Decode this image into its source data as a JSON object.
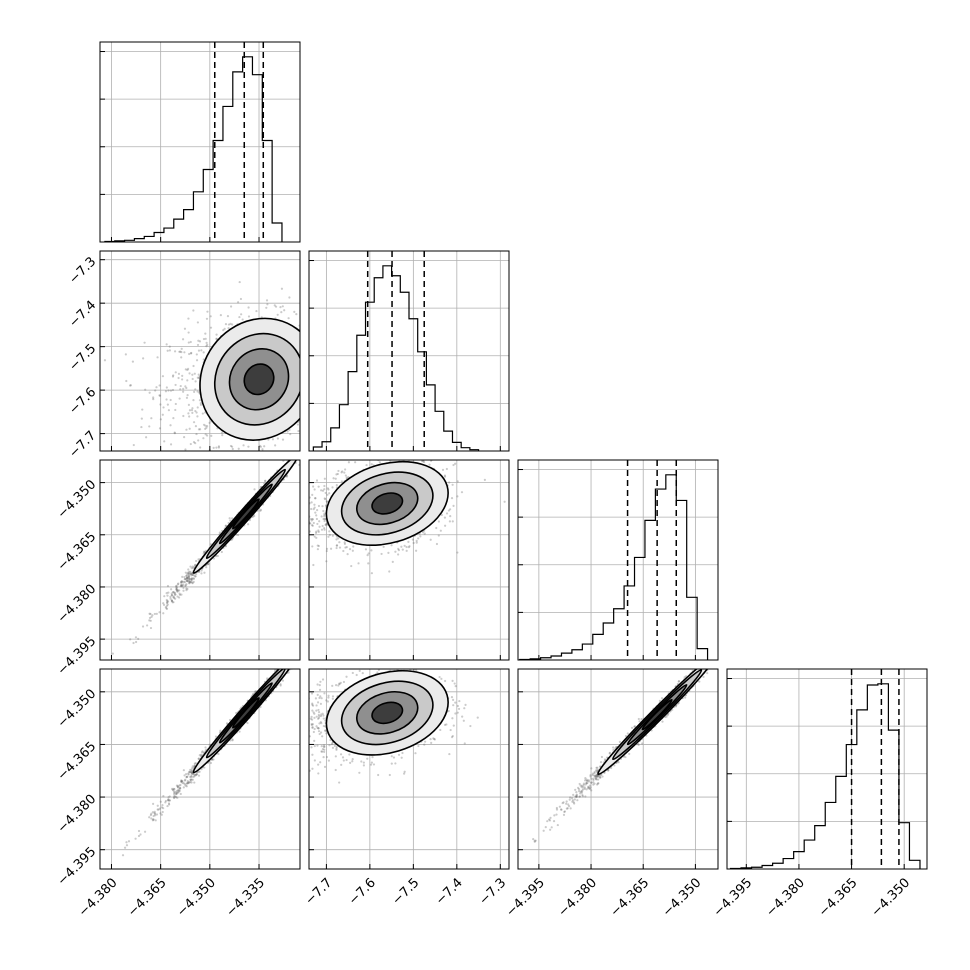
{
  "figure": {
    "title": "",
    "type": "corner"
  },
  "chart_data": {
    "type": "corner",
    "dimension_count": 4,
    "grid": true,
    "quantiles": [
      0.16,
      0.5,
      0.84
    ],
    "parameters": [
      {
        "index": 0,
        "range": [
          -4.3835,
          -4.3225
        ],
        "ticks": [
          -4.38,
          -4.365,
          -4.35,
          -4.335
        ],
        "tick_labels": [
          "−4.380",
          "−4.365",
          "−4.350",
          "−4.335"
        ],
        "quantile_values": [
          -4.3485,
          -4.3395,
          -4.3337
        ],
        "hist_edges": [
          -4.382,
          -4.379,
          -4.376,
          -4.373,
          -4.37,
          -4.367,
          -4.364,
          -4.361,
          -4.358,
          -4.355,
          -4.352,
          -4.349,
          -4.346,
          -4.343,
          -4.34,
          -4.337,
          -4.334,
          -4.331,
          -4.328,
          -4.325
        ],
        "hist_counts": [
          1,
          2,
          3,
          6,
          10,
          17,
          25,
          41,
          58,
          90,
          130,
          182,
          243,
          305,
          332,
          300,
          182,
          34
        ]
      },
      {
        "index": 1,
        "range": [
          -7.74,
          -7.28
        ],
        "ticks": [
          -7.7,
          -7.6,
          -7.5,
          -7.4,
          -7.3
        ],
        "tick_labels": [
          "−7.7",
          "−7.6",
          "−7.5",
          "−7.4",
          "−7.3"
        ],
        "quantile_values": [
          -7.605,
          -7.549,
          -7.475
        ],
        "hist_edges": [
          -7.73,
          -7.71,
          -7.69,
          -7.67,
          -7.65,
          -7.63,
          -7.61,
          -7.59,
          -7.57,
          -7.55,
          -7.53,
          -7.51,
          -7.49,
          -7.47,
          -7.45,
          -7.43,
          -7.41,
          -7.39,
          -7.37,
          -7.35
        ],
        "hist_counts": [
          6,
          14,
          35,
          70,
          120,
          175,
          225,
          262,
          280,
          265,
          240,
          200,
          150,
          100,
          60,
          30,
          13,
          5,
          2
        ]
      },
      {
        "index": 2,
        "range": [
          -4.401,
          -4.3435
        ],
        "ticks": [
          -4.35,
          -4.365,
          -4.38,
          -4.395
        ],
        "tick_labels": [
          "−4.350",
          "−4.365",
          "−4.380",
          "−4.395"
        ],
        "quantile_values": [
          -4.3695,
          -4.361,
          -4.3555
        ],
        "hist_edges": [
          -4.4005,
          -4.3975,
          -4.3945,
          -4.3915,
          -4.3885,
          -4.3855,
          -4.3825,
          -4.3795,
          -4.3765,
          -4.3735,
          -4.3705,
          -4.3675,
          -4.3645,
          -4.3615,
          -4.3585,
          -4.3555,
          -4.3525,
          -4.3495,
          -4.3465
        ],
        "hist_counts": [
          1,
          2,
          4,
          7,
          12,
          18,
          28,
          45,
          65,
          90,
          130,
          180,
          245,
          300,
          325,
          280,
          110,
          20
        ]
      },
      {
        "index": 3,
        "range": [
          -4.4005,
          -4.3435
        ],
        "ticks": [
          -4.35,
          -4.365,
          -4.38,
          -4.395
        ],
        "tick_labels": [
          "−4.350",
          "−4.365",
          "−4.380",
          "−4.395"
        ],
        "quantile_values": [
          -4.365,
          -4.3565,
          -4.3515
        ],
        "hist_edges": [
          -4.3995,
          -4.3965,
          -4.3935,
          -4.3905,
          -4.3875,
          -4.3845,
          -4.3815,
          -4.3785,
          -4.3755,
          -4.3725,
          -4.3695,
          -4.3665,
          -4.3635,
          -4.3605,
          -4.3575,
          -4.3545,
          -4.3515,
          -4.3485,
          -4.3455
        ],
        "hist_counts": [
          1,
          2,
          3,
          6,
          10,
          18,
          30,
          50,
          75,
          115,
          160,
          215,
          275,
          318,
          320,
          240,
          80,
          15
        ]
      }
    ],
    "pairs": [
      {
        "x": 0,
        "y": 1,
        "center": [
          -4.335,
          -7.575
        ],
        "sigma": [
          0.009,
          0.07
        ],
        "rho": 0.1
      },
      {
        "x": 0,
        "y": 2,
        "center": [
          -4.339,
          -4.359
        ],
        "sigma": [
          0.008,
          0.0085
        ],
        "rho": 0.99
      },
      {
        "x": 0,
        "y": 3,
        "center": [
          -4.339,
          -4.356
        ],
        "sigma": [
          0.008,
          0.0085
        ],
        "rho": 0.99
      },
      {
        "x": 1,
        "y": 2,
        "center": [
          -7.56,
          -4.356
        ],
        "sigma": [
          0.07,
          0.006
        ],
        "rho": 0.25
      },
      {
        "x": 1,
        "y": 3,
        "center": [
          -7.56,
          -4.356
        ],
        "sigma": [
          0.07,
          0.006
        ],
        "rho": 0.25
      },
      {
        "x": 2,
        "y": 3,
        "center": [
          -4.361,
          -4.3565
        ],
        "sigma": [
          0.0085,
          0.0085
        ],
        "rho": 0.99
      }
    ]
  }
}
